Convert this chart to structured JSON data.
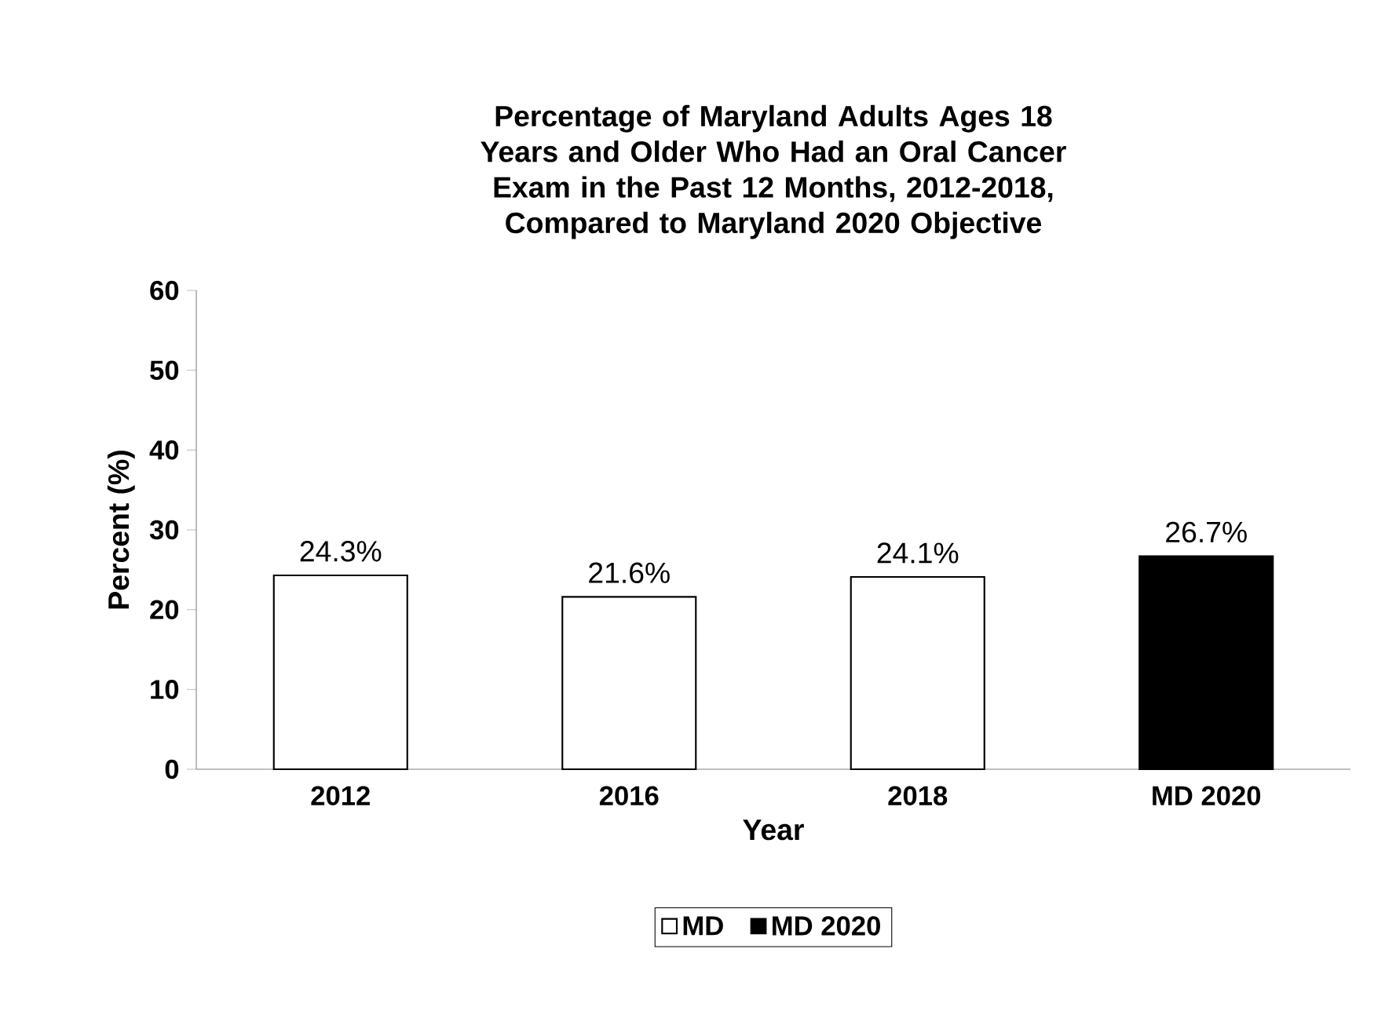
{
  "chart_data": {
    "type": "bar",
    "title": "Percentage of Maryland Adults Ages 18 Years and Older Who Had an Oral Cancer Exam in the Past 12 Months, 2012-2018, Compared to Maryland 2020 Objective",
    "xlabel": "Year",
    "ylabel": "Percent (%)",
    "categories": [
      "2012",
      "2016",
      "2018",
      "MD 2020"
    ],
    "series": [
      {
        "name": "MD",
        "color": "#ffffff",
        "values": [
          24.3,
          21.6,
          24.1,
          null
        ],
        "value_labels": [
          "24.3%",
          "21.6%",
          "24.1%",
          null
        ]
      },
      {
        "name": "MD 2020",
        "color": "#000000",
        "values": [
          null,
          null,
          null,
          26.7
        ],
        "value_labels": [
          null,
          null,
          null,
          "26.7%"
        ]
      }
    ],
    "ylim": [
      0,
      60
    ],
    "yticks": [
      0,
      10,
      20,
      30,
      40,
      50,
      60
    ],
    "legend": "bottom",
    "grid": false
  }
}
